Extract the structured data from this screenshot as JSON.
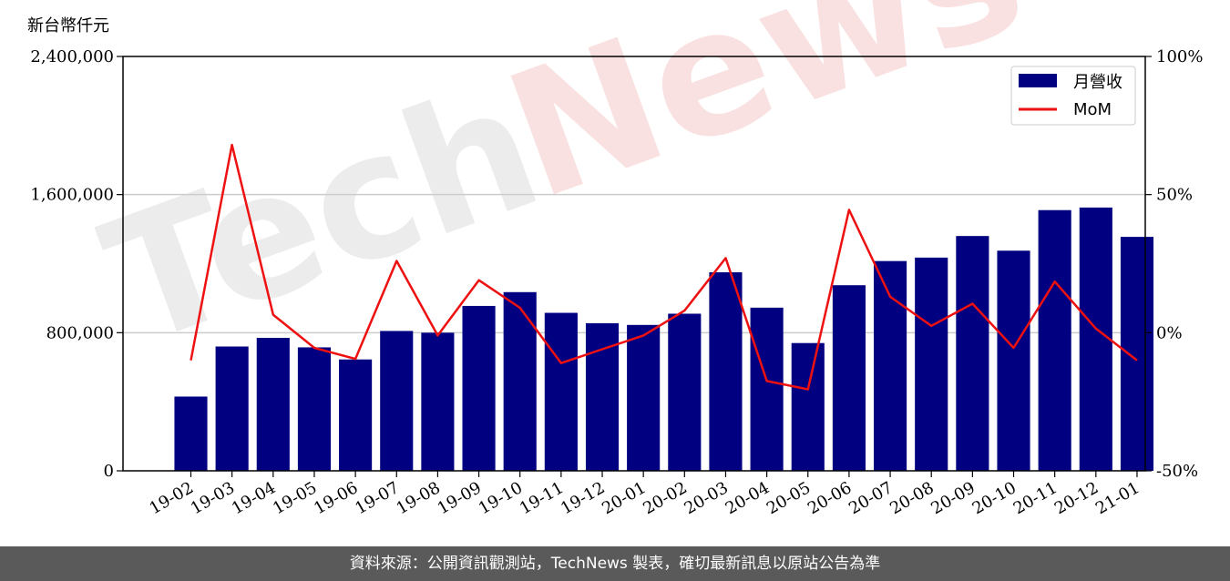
{
  "unit_label": "新台幣仟元",
  "footer": "資料來源：公開資訊觀測站，TechNews 製表，確切最新訊息以原站公告為準",
  "watermark": {
    "part1": "Tech",
    "part2": "News"
  },
  "colors": {
    "bar": "#000080",
    "line": "#ee1111",
    "grid": "#cccccc",
    "footer_bg": "#5a5a5a"
  },
  "chart_data": {
    "type": "bar",
    "categories": [
      "19-02",
      "19-03",
      "19-04",
      "19-05",
      "19-06",
      "19-07",
      "19-08",
      "19-09",
      "19-10",
      "19-11",
      "19-12",
      "20-01",
      "20-02",
      "20-03",
      "20-04",
      "20-05",
      "20-06",
      "20-07",
      "20-08",
      "20-09",
      "20-10",
      "20-11",
      "20-12",
      "21-01"
    ],
    "series": [
      {
        "name": "月營收",
        "type": "bar",
        "axis": "left",
        "values": [
          430000,
          720000,
          770000,
          715000,
          645000,
          810000,
          800000,
          955000,
          1035000,
          915000,
          855000,
          845000,
          910000,
          1150000,
          945000,
          740000,
          1075000,
          1215000,
          1235000,
          1360000,
          1275000,
          1510000,
          1525000,
          1355000
        ]
      },
      {
        "name": "MoM",
        "type": "line",
        "axis": "right",
        "values": [
          -10,
          68,
          6.5,
          -5.5,
          -9.5,
          26,
          -1,
          19,
          9,
          -11,
          -6,
          -1,
          8,
          27,
          -17.5,
          -20.5,
          44.5,
          13,
          2.5,
          10.5,
          -5.5,
          18.5,
          1.5,
          -10
        ]
      }
    ],
    "y_left": {
      "lim": [
        0,
        2400000
      ],
      "ticks": [
        0,
        800000,
        1600000,
        2400000
      ],
      "tick_labels": [
        "0",
        "800,000",
        "1,600,000",
        "2,400,000"
      ]
    },
    "y_right": {
      "lim": [
        -50,
        100
      ],
      "ticks": [
        -50,
        0,
        50,
        100
      ],
      "tick_labels": [
        "-50%",
        "0%",
        "50%",
        "100%"
      ]
    },
    "grid": "horizontal",
    "legend": "top-right"
  }
}
